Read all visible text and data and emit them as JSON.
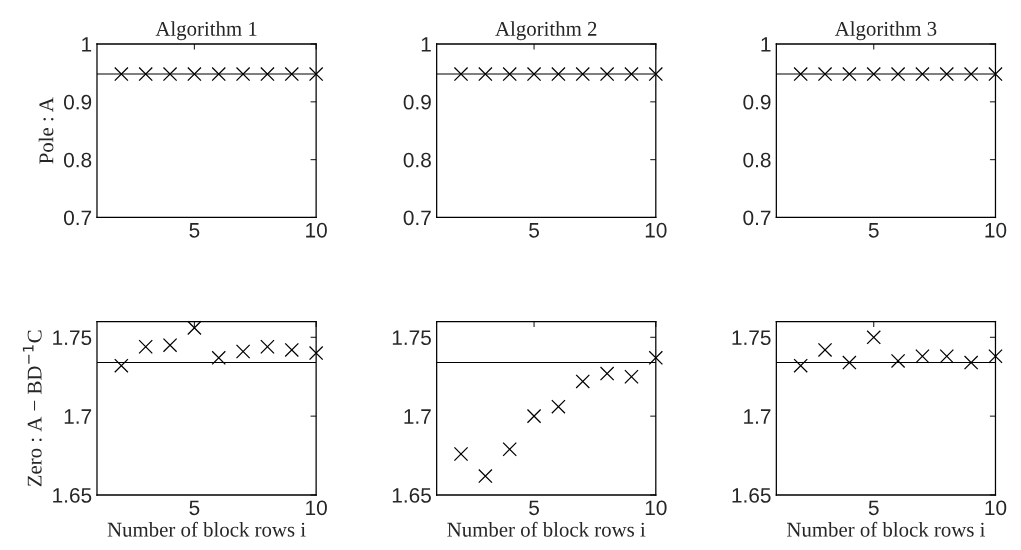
{
  "chart_data": [
    {
      "type": "scatter",
      "title": "Algorithm 1",
      "ylabel": "Pole : A",
      "x": [
        2,
        3,
        4,
        5,
        6,
        7,
        8,
        9,
        10
      ],
      "series": [
        {
          "color": "#000000",
          "values": [
            0.948,
            0.948,
            0.948,
            0.948,
            0.948,
            0.948,
            0.948,
            0.948,
            0.948
          ]
        }
      ],
      "marker": "cross",
      "xlim": [
        1,
        10
      ],
      "xticks": [
        5,
        10
      ],
      "ylim": [
        0.7,
        1
      ],
      "yticks": [
        0.7,
        0.8,
        0.9,
        1
      ],
      "ref_lines": [
        {
          "axis": "y",
          "value": 0.948,
          "color": "#000000"
        }
      ]
    },
    {
      "type": "scatter",
      "title": "Algorithm 2",
      "x": [
        2,
        3,
        4,
        5,
        6,
        7,
        8,
        9,
        10
      ],
      "series": [
        {
          "color": "#000000",
          "values": [
            0.948,
            0.948,
            0.948,
            0.948,
            0.948,
            0.948,
            0.948,
            0.948,
            0.948
          ]
        }
      ],
      "marker": "cross",
      "xlim": [
        1,
        10
      ],
      "xticks": [
        5,
        10
      ],
      "ylim": [
        0.7,
        1
      ],
      "yticks": [
        0.7,
        0.8,
        0.9,
        1
      ],
      "ref_lines": [
        {
          "axis": "y",
          "value": 0.948,
          "color": "#000000"
        }
      ]
    },
    {
      "type": "scatter",
      "title": "Algorithm 3",
      "x": [
        2,
        3,
        4,
        5,
        6,
        7,
        8,
        9,
        10
      ],
      "series": [
        {
          "color": "#000000",
          "values": [
            0.948,
            0.948,
            0.948,
            0.948,
            0.948,
            0.948,
            0.948,
            0.948,
            0.948
          ]
        }
      ],
      "marker": "cross",
      "xlim": [
        1,
        10
      ],
      "xticks": [
        5,
        10
      ],
      "ylim": [
        0.7,
        1
      ],
      "yticks": [
        0.7,
        0.8,
        0.9,
        1
      ],
      "ref_lines": [
        {
          "axis": "y",
          "value": 0.948,
          "color": "#000000"
        }
      ]
    },
    {
      "type": "scatter",
      "xlabel": "Number of block rows i",
      "ylabel": "Zero : A − BD$^{−1}$C",
      "x": [
        2,
        3,
        4,
        5,
        6,
        7,
        8,
        9,
        10
      ],
      "series": [
        {
          "color": "#000000",
          "values": [
            1.732,
            1.744,
            1.745,
            1.756,
            1.737,
            1.741,
            1.744,
            1.742,
            1.74
          ]
        }
      ],
      "marker": "cross",
      "xlim": [
        1,
        10
      ],
      "xticks": [
        5,
        10
      ],
      "ylim": [
        1.65,
        1.76
      ],
      "yticks": [
        1.65,
        1.7,
        1.75
      ],
      "ref_lines": [
        {
          "axis": "y",
          "value": 1.734,
          "color": "#000000"
        }
      ]
    },
    {
      "type": "scatter",
      "xlabel": "Number of block rows i",
      "x": [
        2,
        3,
        4,
        5,
        6,
        7,
        8,
        9,
        10
      ],
      "series": [
        {
          "color": "#000000",
          "values": [
            1.676,
            1.662,
            1.679,
            1.7,
            1.706,
            1.722,
            1.727,
            1.725,
            1.737
          ]
        }
      ],
      "marker": "cross",
      "xlim": [
        1,
        10
      ],
      "xticks": [
        5,
        10
      ],
      "ylim": [
        1.65,
        1.76
      ],
      "yticks": [
        1.65,
        1.7,
        1.75
      ],
      "ref_lines": [
        {
          "axis": "y",
          "value": 1.734,
          "color": "#000000"
        }
      ]
    },
    {
      "type": "scatter",
      "xlabel": "Number of block rows i",
      "x": [
        2,
        3,
        4,
        5,
        6,
        7,
        8,
        9,
        10
      ],
      "series": [
        {
          "color": "#000000",
          "values": [
            1.732,
            1.742,
            1.734,
            1.75,
            1.735,
            1.738,
            1.738,
            1.734,
            1.738
          ]
        }
      ],
      "marker": "cross",
      "xlim": [
        1,
        10
      ],
      "xticks": [
        5,
        10
      ],
      "ylim": [
        1.65,
        1.76
      ],
      "yticks": [
        1.65,
        1.7,
        1.75
      ],
      "ref_lines": [
        {
          "axis": "y",
          "value": 1.734,
          "color": "#000000"
        }
      ]
    }
  ]
}
